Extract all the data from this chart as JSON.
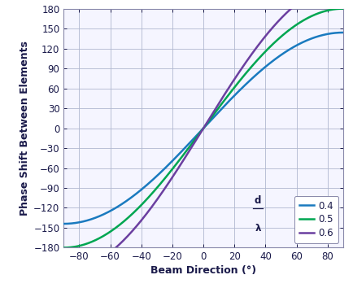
{
  "xlabel": "Beam Direction (°)",
  "ylabel": "Phase Shift Between Elements",
  "xlim": [
    -90,
    90
  ],
  "ylim": [
    -180,
    180
  ],
  "xticks": [
    -80,
    -60,
    -40,
    -20,
    0,
    20,
    40,
    60,
    80
  ],
  "yticks": [
    -180,
    -150,
    -120,
    -90,
    -60,
    -30,
    0,
    30,
    60,
    90,
    120,
    150,
    180
  ],
  "d_over_lambda": [
    0.4,
    0.5,
    0.6
  ],
  "line_colors": [
    "#1a7abf",
    "#00a651",
    "#6b3fa0"
  ],
  "line_labels": [
    "0.4",
    "0.5",
    "0.6"
  ],
  "bg_color": "#ffffff",
  "plot_bg_color": "#f5f5ff",
  "grid_color": "#b0b8d0",
  "spine_color": "#8888aa",
  "tick_label_color": "#1a1a4a",
  "axis_label_color": "#1a1a4a",
  "line_width": 1.8,
  "legend_fontsize": 8.5,
  "axis_label_fontsize": 9,
  "tick_fontsize": 8.5
}
